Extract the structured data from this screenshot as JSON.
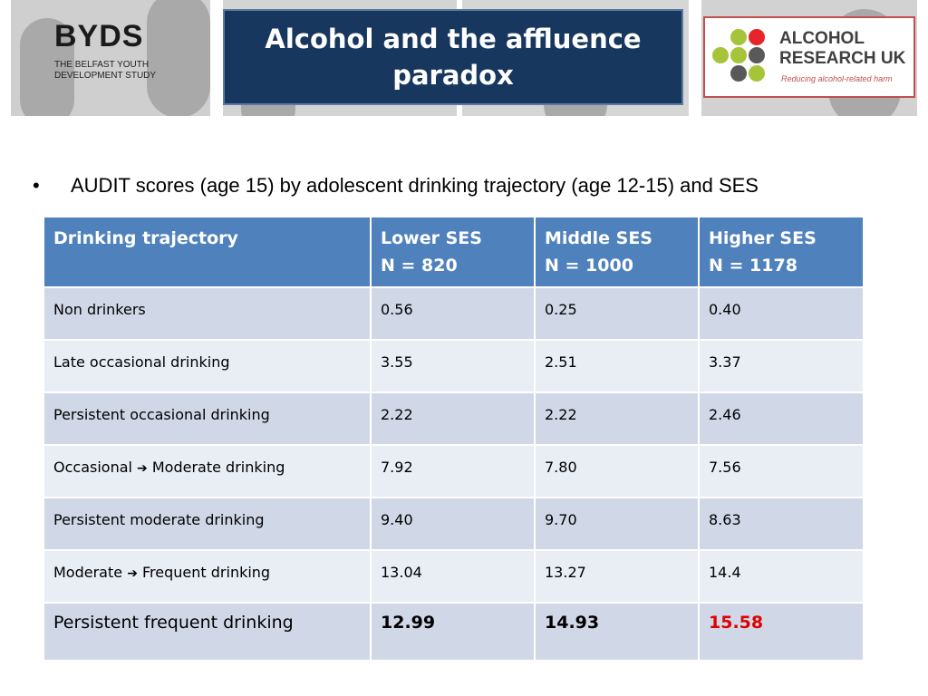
{
  "header": {
    "byds_title": "BYDS",
    "byds_subtitle": "THE BELFAST YOUTH DEVELOPMENT STUDY",
    "slide_title": "Alcohol and the affluence paradox",
    "aruk_name_line1": "ALCOHOL",
    "aruk_name_line2": "RESEARCH UK",
    "aruk_tagline": "Reducing alcohol-related harm"
  },
  "bullet": "AUDIT scores (age 15)  by adolescent drinking trajectory (age 12-15) and SES",
  "table": {
    "headers": [
      {
        "line1": "Drinking trajectory",
        "line2": ""
      },
      {
        "line1": "Lower SES",
        "line2": "N = 820"
      },
      {
        "line1": "Middle SES",
        "line2": "N = 1000"
      },
      {
        "line1": "Higher SES",
        "line2": "N = 1178"
      }
    ],
    "rows": [
      {
        "label_a": "Non drinkers",
        "label_b": "",
        "v": [
          "0.56",
          "0.25",
          "0.40"
        ]
      },
      {
        "label_a": "Late occasional drinking",
        "label_b": "",
        "v": [
          "3.55",
          "2.51",
          "3.37"
        ]
      },
      {
        "label_a": "Persistent occasional drinking",
        "label_b": "",
        "v": [
          "2.22",
          "2.22",
          "2.46"
        ]
      },
      {
        "label_a": "Occasional ",
        "label_b": " Moderate drinking",
        "v": [
          "7.92",
          "7.80",
          "7.56"
        ]
      },
      {
        "label_a": "Persistent moderate drinking",
        "label_b": "",
        "v": [
          "9.40",
          "9.70",
          "8.63"
        ]
      },
      {
        "label_a": "Moderate ",
        "label_b": " Frequent drinking",
        "v": [
          "13.04",
          "13.27",
          "14.4"
        ]
      },
      {
        "label_a": "Persistent frequent drinking",
        "label_b": "",
        "v": [
          "12.99",
          "14.93",
          "15.58"
        ]
      }
    ]
  },
  "colors": {
    "title_bg": "#17375e",
    "header_bg": "#4f81bd",
    "row_odd": "#d0d8e8",
    "row_even": "#e9edf4",
    "highlight": "#e00000"
  }
}
